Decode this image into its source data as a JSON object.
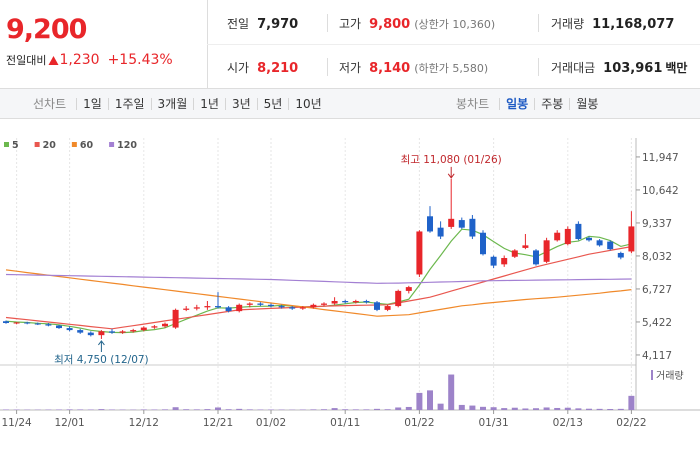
{
  "quote": {
    "price": "9,200",
    "change_label": "전일대비",
    "change": "1,230",
    "change_rate": "+15.43%"
  },
  "stats": [
    {
      "label": "전일",
      "value": "7,970"
    },
    {
      "label": "고가",
      "value": "9,800",
      "note": "(상한가 10,360)"
    },
    {
      "label": "거래량",
      "value": "11,168,077"
    },
    {
      "label": "시가",
      "value": "8,210"
    },
    {
      "label": "저가",
      "value": "8,140",
      "note": "(하한가 5,580)"
    },
    {
      "label": "거래대금",
      "value": "103,961",
      "unit": "백만"
    }
  ],
  "tabs": {
    "line": {
      "label": "선차트",
      "periods": [
        "1일",
        "1주일",
        "3개월",
        "1년",
        "3년",
        "5년",
        "10년"
      ]
    },
    "candle": {
      "label": "봉차트",
      "periods": [
        "일봉",
        "주봉",
        "월봉"
      ],
      "selected": 0
    }
  },
  "chart_data": {
    "type": "candlestick",
    "categories": [
      null,
      "11/24",
      null,
      null,
      null,
      null,
      "12/01",
      null,
      null,
      null,
      null,
      null,
      null,
      "12/12",
      null,
      null,
      null,
      null,
      null,
      null,
      "12/21",
      null,
      null,
      null,
      null,
      "01/02",
      null,
      null,
      null,
      null,
      null,
      null,
      "01/11",
      null,
      null,
      null,
      null,
      null,
      null,
      "01/22",
      null,
      null,
      null,
      null,
      null,
      null,
      "01/31",
      null,
      null,
      null,
      null,
      null,
      null,
      "02/13",
      null,
      null,
      null,
      null,
      null,
      "02/22"
    ],
    "open": [
      5450,
      5380,
      5400,
      5360,
      5330,
      5280,
      5180,
      5100,
      5000,
      4900,
      5050,
      5000,
      5050,
      5100,
      5200,
      5250,
      5200,
      5900,
      5950,
      6000,
      6050,
      6000,
      5850,
      6100,
      6150,
      6100,
      6050,
      6000,
      5950,
      6000,
      6100,
      6150,
      6250,
      6200,
      6250,
      6200,
      5900,
      6050,
      6650,
      7300,
      9600,
      9150,
      9180,
      9450,
      9500,
      8950,
      8000,
      7700,
      8000,
      8350,
      8250,
      7800,
      8650,
      8500,
      9300,
      8750,
      8650,
      8600,
      8150,
      8210
    ],
    "high": [
      5480,
      5420,
      5430,
      5400,
      5380,
      5300,
      5250,
      5150,
      5050,
      5100,
      5150,
      5100,
      5150,
      5250,
      5300,
      5400,
      5950,
      6050,
      6100,
      6250,
      6600,
      6050,
      6150,
      6200,
      6200,
      6150,
      6100,
      6050,
      6050,
      6150,
      6200,
      6400,
      6300,
      6300,
      6300,
      6250,
      6100,
      6700,
      6850,
      9050,
      10000,
      9400,
      11080,
      9550,
      9650,
      9050,
      8050,
      8050,
      8300,
      8900,
      8300,
      8750,
      9050,
      9200,
      9400,
      8800,
      8700,
      8650,
      8200,
      9800
    ],
    "low": [
      5350,
      5330,
      5330,
      5300,
      5250,
      5150,
      5050,
      4950,
      4850,
      4750,
      4950,
      4950,
      5000,
      5050,
      5150,
      5200,
      5150,
      5850,
      5880,
      5900,
      5950,
      5800,
      5800,
      6000,
      6050,
      6000,
      5950,
      5900,
      5900,
      5950,
      6050,
      6100,
      6150,
      6150,
      6150,
      5850,
      5850,
      6000,
      6550,
      7200,
      8950,
      8700,
      9100,
      9100,
      8700,
      8050,
      7550,
      7600,
      7950,
      8300,
      7650,
      7750,
      8600,
      8450,
      8650,
      8600,
      8400,
      8250,
      7900,
      8140
    ],
    "close": [
      5380,
      5400,
      5360,
      5330,
      5280,
      5180,
      5100,
      5000,
      4900,
      5050,
      5000,
      5050,
      5100,
      5200,
      5250,
      5350,
      5900,
      5950,
      6000,
      6050,
      6000,
      5850,
      6100,
      6150,
      6100,
      6050,
      6000,
      5950,
      6000,
      6100,
      6150,
      6250,
      6200,
      6250,
      6200,
      5900,
      6050,
      6650,
      6800,
      9000,
      9000,
      8800,
      9500,
      9150,
      8800,
      8100,
      7650,
      7950,
      8250,
      8450,
      7700,
      8650,
      8950,
      9100,
      8700,
      8650,
      8450,
      8300,
      7970,
      9200
    ],
    "volume": [
      400000,
      350000,
      300000,
      300000,
      350000,
      400000,
      500000,
      450000,
      400000,
      700000,
      400000,
      350000,
      300000,
      450000,
      400000,
      500000,
      2200000,
      600000,
      500000,
      700000,
      2000000,
      600000,
      900000,
      500000,
      400000,
      400000,
      350000,
      300000,
      400000,
      500000,
      600000,
      1500000,
      600000,
      500000,
      500000,
      900000,
      600000,
      2000000,
      2400000,
      13500000,
      15500000,
      5000000,
      28000000,
      4000000,
      3500000,
      2500000,
      2200000,
      1500000,
      1800000,
      1200000,
      1400000,
      2000000,
      1600000,
      1800000,
      1300000,
      1000000,
      900000,
      800000,
      900000,
      11168077
    ],
    "up_color": "#e8262a",
    "down_color": "#1f62c9",
    "volume_color": "#9d83c9",
    "series": [
      {
        "name": "5",
        "color": "#6cb84e",
        "values": [
          5450,
          5420,
          5400,
          5370,
          5350,
          5310,
          5250,
          5178,
          5092,
          5046,
          5010,
          5000,
          5020,
          5080,
          5120,
          5190,
          5360,
          5530,
          5690,
          5850,
          5980,
          5970,
          6000,
          6030,
          6040,
          6050,
          6080,
          6050,
          6020,
          6020,
          6040,
          6090,
          6140,
          6190,
          6210,
          6160,
          6120,
          6210,
          6320,
          6880,
          7500,
          8050,
          8620,
          9090,
          9050,
          8870,
          8600,
          8330,
          8150,
          8080,
          8000,
          8200,
          8400,
          8570,
          8620,
          8810,
          8770,
          8640,
          8410,
          8510
        ]
      },
      {
        "name": "20",
        "color": "#e9574f",
        "values": [
          5600,
          5555,
          5510,
          5465,
          5420,
          5375,
          5330,
          5285,
          5240,
          5195,
          5150,
          5213,
          5275,
          5338,
          5400,
          5463,
          5525,
          5588,
          5650,
          5713,
          5775,
          5838,
          5900,
          5919,
          5938,
          5956,
          5975,
          5994,
          6013,
          6031,
          6050,
          6058,
          6067,
          6075,
          6083,
          6092,
          6100,
          6175,
          6250,
          6325,
          6400,
          6520,
          6640,
          6760,
          6880,
          7000,
          7120,
          7240,
          7360,
          7480,
          7600,
          7700,
          7800,
          7900,
          8000,
          8100,
          8175,
          8250,
          8325,
          8400
        ]
      },
      {
        "name": "60",
        "color": "#f0892a",
        "values": [
          7480,
          7428,
          7375,
          7323,
          7271,
          7219,
          7166,
          7114,
          7062,
          7009,
          6957,
          6905,
          6853,
          6800,
          6748,
          6696,
          6644,
          6591,
          6539,
          6487,
          6434,
          6382,
          6330,
          6278,
          6225,
          6173,
          6121,
          6069,
          6016,
          5964,
          5912,
          5859,
          5807,
          5755,
          5703,
          5650,
          5670,
          5690,
          5710,
          5780,
          5850,
          5920,
          5990,
          6060,
          6100,
          6150,
          6190,
          6230,
          6270,
          6310,
          6340,
          6370,
          6400,
          6440,
          6480,
          6520,
          6560,
          6610,
          6650,
          6700
        ]
      },
      {
        "name": "120",
        "color": "#a380d3",
        "values": [
          7300,
          7292,
          7284,
          7276,
          7268,
          7260,
          7252,
          7244,
          7236,
          7228,
          7220,
          7212,
          7204,
          7196,
          7188,
          7180,
          7172,
          7164,
          7156,
          7148,
          7140,
          7132,
          7124,
          7116,
          7108,
          7100,
          7085,
          7070,
          7055,
          7040,
          7025,
          7010,
          6995,
          6980,
          6965,
          6950,
          6955,
          6960,
          6970,
          6980,
          6990,
          7000,
          7010,
          7020,
          7035,
          7050,
          7055,
          7060,
          7065,
          7070,
          7075,
          7080,
          7085,
          7090,
          7095,
          7100,
          7105,
          7110,
          7115,
          7120
        ]
      }
    ],
    "ylim": [
      3720,
      12300
    ],
    "yticks": [
      {
        "value": 4117,
        "label": "4,117"
      },
      {
        "value": 5422,
        "label": "5,422"
      },
      {
        "value": 6727,
        "label": "6,727"
      },
      {
        "value": 8032,
        "label": "8,032"
      },
      {
        "value": 9337,
        "label": "9,337"
      },
      {
        "value": 10642,
        "label": "10,642"
      },
      {
        "value": 11947,
        "label": "11,947"
      }
    ],
    "vlim": [
      0,
      30000000
    ],
    "volume_label": "거래량",
    "annotations": {
      "high": "최고 11,080 (01/26)",
      "low": "최저 4,750 (12/07)"
    }
  }
}
